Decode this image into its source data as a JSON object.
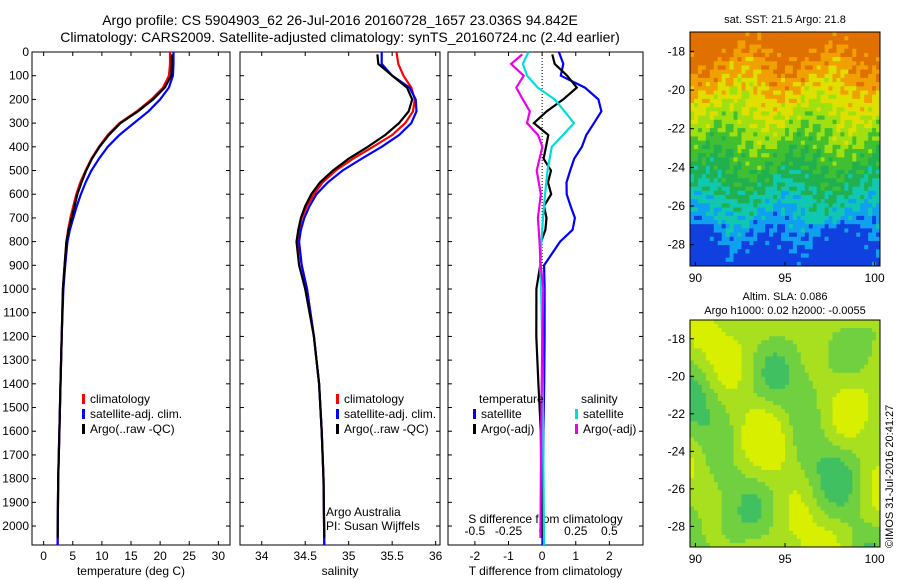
{
  "header": {
    "line1": "Argo profile: CS 5904903_62 26-Jul-2016 20160728_1657 23.036S 94.842E",
    "line2": "Climatology: CARS2009. Satellite-adjusted climatology: synTS_20160724.nc (2.4d earlier)"
  },
  "footer": {
    "watermark": "©IMOS 31-Jul-2016 20:41:27"
  },
  "chart_data": [
    {
      "id": "temperature",
      "type": "line",
      "xlabel": "temperature (deg C)",
      "xlim": [
        -2,
        32
      ],
      "xticks": [
        0,
        5,
        10,
        15,
        20,
        25,
        30
      ],
      "xtick_labels": [
        "0",
        "5",
        "10",
        "15",
        "20",
        "25",
        "30"
      ],
      "ylim": [
        0,
        2080
      ],
      "yticks": [
        0,
        100,
        200,
        300,
        400,
        500,
        600,
        700,
        800,
        900,
        1000,
        1100,
        1200,
        1300,
        1400,
        1500,
        1600,
        1700,
        1800,
        1900,
        2000
      ],
      "ytick_labels": [
        "0",
        "100",
        "200",
        "300",
        "400",
        "500",
        "600",
        "700",
        "800",
        "900",
        "1000",
        "1100",
        "1200",
        "1300",
        "1400",
        "1500",
        "1600",
        "1700",
        "1800",
        "1900",
        "2000"
      ],
      "legend": {
        "placement": "lower-center",
        "entries": [
          {
            "label": "climatology",
            "color": "#ff0000"
          },
          {
            "label": "satellite-adj. clim.",
            "color": "#0000ff"
          },
          {
            "label": "Argo(..raw -QC)",
            "color": "#000000"
          }
        ]
      },
      "series": [
        {
          "color": "#ff0000",
          "x": [
            21.7,
            21.7,
            21.5,
            20.5,
            18.5,
            16,
            13,
            11,
            9.5,
            8.2,
            7.2,
            6.3,
            5.6,
            5.1,
            4.6,
            4.2,
            3.9,
            3.6,
            3.3,
            3.1,
            2.9,
            2.7,
            2.5,
            2.4
          ],
          "y": [
            0,
            50,
            100,
            150,
            200,
            250,
            300,
            350,
            400,
            450,
            500,
            550,
            600,
            650,
            700,
            750,
            800,
            900,
            1000,
            1200,
            1400,
            1600,
            1800,
            2080
          ]
        },
        {
          "color": "#0000ff",
          "x": [
            22.3,
            22.3,
            22.2,
            21.5,
            20,
            18,
            15.5,
            13,
            11,
            9.5,
            8.2,
            7.2,
            6.4,
            5.7,
            5.1,
            4.5,
            4.1,
            3.7,
            3.4,
            3.1,
            2.9,
            2.7,
            2.5,
            2.4
          ],
          "y": [
            0,
            50,
            100,
            150,
            200,
            250,
            300,
            350,
            400,
            450,
            500,
            550,
            600,
            650,
            700,
            750,
            800,
            900,
            1000,
            1200,
            1400,
            1600,
            1800,
            2080
          ]
        },
        {
          "color": "#000000",
          "x": [
            22,
            22,
            21.9,
            20.8,
            18.8,
            16.2,
            13.2,
            11.2,
            9.6,
            8.3,
            7.3,
            6.5,
            5.8,
            5.3,
            4.8,
            4.3,
            3.9,
            3.6,
            3.3,
            3.1,
            2.9,
            2.7,
            2.5,
            2.4
          ],
          "y": [
            10,
            50,
            100,
            150,
            200,
            250,
            300,
            350,
            400,
            450,
            500,
            550,
            600,
            650,
            700,
            750,
            800,
            900,
            1000,
            1200,
            1400,
            1600,
            1800,
            2050
          ]
        }
      ]
    },
    {
      "id": "salinity",
      "type": "line",
      "xlabel": "salinity",
      "xlim": [
        33.75,
        36.05
      ],
      "xticks": [
        34,
        34.5,
        35,
        35.5,
        36
      ],
      "xtick_labels": [
        "34",
        "34.5",
        "35",
        "35.5",
        "36"
      ],
      "ylim": [
        0,
        2080
      ],
      "yticks": [
        0,
        100,
        200,
        300,
        400,
        500,
        600,
        700,
        800,
        900,
        1000,
        1100,
        1200,
        1300,
        1400,
        1500,
        1600,
        1700,
        1800,
        1900,
        2000
      ],
      "ytick_labels": [],
      "legend": {
        "placement": "lower-right",
        "entries": [
          {
            "label": "climatology",
            "color": "#ff0000"
          },
          {
            "label": "satellite-adj. clim.",
            "color": "#0000ff"
          },
          {
            "label": "Argo(..raw -QC)",
            "color": "#000000"
          }
        ]
      },
      "annotation": [
        "Argo Australia",
        "PI: Susan Wijffels"
      ],
      "series": [
        {
          "color": "#ff0000",
          "x": [
            35.55,
            35.57,
            35.63,
            35.72,
            35.76,
            35.74,
            35.65,
            35.5,
            35.28,
            35.05,
            34.85,
            34.7,
            34.6,
            34.52,
            34.46,
            34.43,
            34.42,
            34.46,
            34.52,
            34.6,
            34.66,
            34.69,
            34.71,
            34.72
          ],
          "y": [
            0,
            50,
            100,
            150,
            200,
            250,
            300,
            350,
            400,
            450,
            500,
            550,
            600,
            650,
            700,
            750,
            800,
            900,
            1000,
            1200,
            1400,
            1600,
            1800,
            2080
          ]
        },
        {
          "color": "#0000ff",
          "x": [
            35.38,
            35.38,
            35.5,
            35.7,
            35.77,
            35.78,
            35.72,
            35.58,
            35.38,
            35.15,
            34.93,
            34.76,
            34.63,
            34.55,
            34.49,
            34.45,
            34.43,
            34.46,
            34.52,
            34.6,
            34.66,
            34.69,
            34.71,
            34.72
          ],
          "y": [
            0,
            50,
            100,
            150,
            200,
            250,
            300,
            350,
            400,
            450,
            500,
            550,
            600,
            650,
            700,
            750,
            800,
            900,
            1000,
            1200,
            1400,
            1600,
            1800,
            2080
          ]
        },
        {
          "color": "#000000",
          "x": [
            35.33,
            35.34,
            35.5,
            35.67,
            35.73,
            35.69,
            35.58,
            35.42,
            35.22,
            35.0,
            34.82,
            34.67,
            34.57,
            34.5,
            34.45,
            34.42,
            34.4,
            34.43,
            34.5,
            34.6,
            34.66,
            34.69,
            34.71,
            34.72
          ],
          "y": [
            10,
            50,
            100,
            150,
            200,
            250,
            300,
            350,
            400,
            450,
            500,
            550,
            600,
            650,
            700,
            750,
            800,
            900,
            1000,
            1200,
            1400,
            1600,
            1800,
            2050
          ]
        }
      ]
    },
    {
      "id": "difference",
      "type": "line",
      "xlabel": "T difference from climatology",
      "xlabel_top": "S difference from climatology",
      "xlim": [
        -2.8,
        3.0
      ],
      "xticks": [
        -2,
        -1,
        0,
        1,
        2
      ],
      "xtick_labels": [
        "-2",
        "-1",
        "0",
        "1",
        "2"
      ],
      "top_tick_labels": [
        "-0.5",
        "-0.25",
        "0",
        "0.25",
        "0.5"
      ],
      "ylim": [
        0,
        2080
      ],
      "yticks": [
        0,
        100,
        200,
        300,
        400,
        500,
        600,
        700,
        800,
        900,
        1000,
        1100,
        1200,
        1300,
        1400,
        1500,
        1600,
        1700,
        1800,
        1900,
        2000
      ],
      "ytick_labels": [],
      "legend": {
        "placement": "lower",
        "groups": [
          {
            "title": "temperature",
            "entries": [
              {
                "label": "satellite",
                "color": "#0000ff"
              },
              {
                "label": "Argo(-adj)",
                "color": "#000000"
              }
            ]
          },
          {
            "title": "salinity",
            "entries": [
              {
                "label": "satellite",
                "color": "#00dddd"
              },
              {
                "label": "Argo(-adj)",
                "color": "#ee00ee"
              }
            ]
          }
        ]
      },
      "series": [
        {
          "color": "#0000ff",
          "x": [
            0.5,
            0.6,
            0.5,
            1.2,
            1.6,
            1.7,
            1.5,
            1.3,
            1.2,
            1.0,
            0.9,
            0.8,
            0.8,
            0.9,
            1.0,
            0.9,
            0.5,
            0.0,
            0.0,
            0.0,
            0.0,
            0.0,
            0.0
          ],
          "y": [
            0,
            50,
            100,
            150,
            200,
            250,
            300,
            350,
            400,
            450,
            500,
            550,
            600,
            650,
            700,
            750,
            800,
            900,
            1000,
            1200,
            1400,
            1600,
            2080
          ]
        },
        {
          "color": "#000000",
          "x": [
            0.3,
            0.4,
            0.8,
            1.1,
            0.7,
            0.2,
            -0.2,
            0.2,
            0.1,
            0.0,
            0.2,
            0.1,
            0.2,
            0.0,
            0.1,
            0.1,
            0.0,
            0.0,
            -0.1,
            -0.1,
            -0.05,
            0.0,
            0.0
          ],
          "y": [
            10,
            50,
            100,
            150,
            200,
            250,
            300,
            350,
            400,
            450,
            500,
            550,
            600,
            650,
            700,
            750,
            800,
            900,
            1000,
            1200,
            1400,
            1600,
            2050
          ]
        },
        {
          "color": "#00dddd",
          "x": [
            -0.4,
            -0.6,
            -0.5,
            -0.2,
            0.3,
            0.6,
            0.9,
            0.6,
            0.3,
            0.2,
            0.15,
            0.1,
            0.05,
            0.0,
            0.0,
            0.0,
            0.0,
            0.0
          ],
          "y": [
            0,
            50,
            100,
            150,
            200,
            250,
            300,
            350,
            400,
            500,
            600,
            700,
            800,
            900,
            1000,
            1200,
            1600,
            2080
          ]
        },
        {
          "color": "#ee00ee",
          "x": [
            -0.6,
            -0.9,
            -0.5,
            -0.7,
            -0.5,
            -0.3,
            -0.4,
            -0.1,
            0.0,
            -0.2,
            -0.1,
            -0.2,
            -0.15,
            -0.1,
            0.0,
            0.0,
            0.0,
            0.0
          ],
          "y": [
            10,
            50,
            100,
            150,
            200,
            250,
            300,
            350,
            400,
            500,
            600,
            700,
            800,
            900,
            1000,
            1200,
            1600,
            2050
          ]
        }
      ]
    },
    {
      "id": "sst_map",
      "type": "heatmap",
      "title": "sat. SST: 21.5 Argo: 21.8",
      "xlim": [
        89.7,
        100.3
      ],
      "ylim": [
        -29.1,
        -17.0
      ],
      "xticks": [
        90,
        95,
        100
      ],
      "yticks": [
        -18,
        -20,
        -22,
        -24,
        -26,
        -28
      ],
      "colormap": [
        "#1040e0",
        "#10a0f0",
        "#10c8b0",
        "#20b050",
        "#40c030",
        "#a0e010",
        "#e0e000",
        "#f0a000",
        "#e07000"
      ]
    },
    {
      "id": "sla_map",
      "type": "heatmap",
      "title": "Altim. SLA: 0.086",
      "subtitle": "Argo h1000: 0.02 h2000: -0.0055",
      "xlim": [
        89.7,
        100.3
      ],
      "ylim": [
        -29.1,
        -17.0
      ],
      "xticks": [
        90,
        95,
        100
      ],
      "yticks": [
        -18,
        -20,
        -22,
        -24,
        -26,
        -28
      ],
      "colormap": [
        "#40c060",
        "#70d040",
        "#a8e020",
        "#d8f000"
      ]
    }
  ]
}
